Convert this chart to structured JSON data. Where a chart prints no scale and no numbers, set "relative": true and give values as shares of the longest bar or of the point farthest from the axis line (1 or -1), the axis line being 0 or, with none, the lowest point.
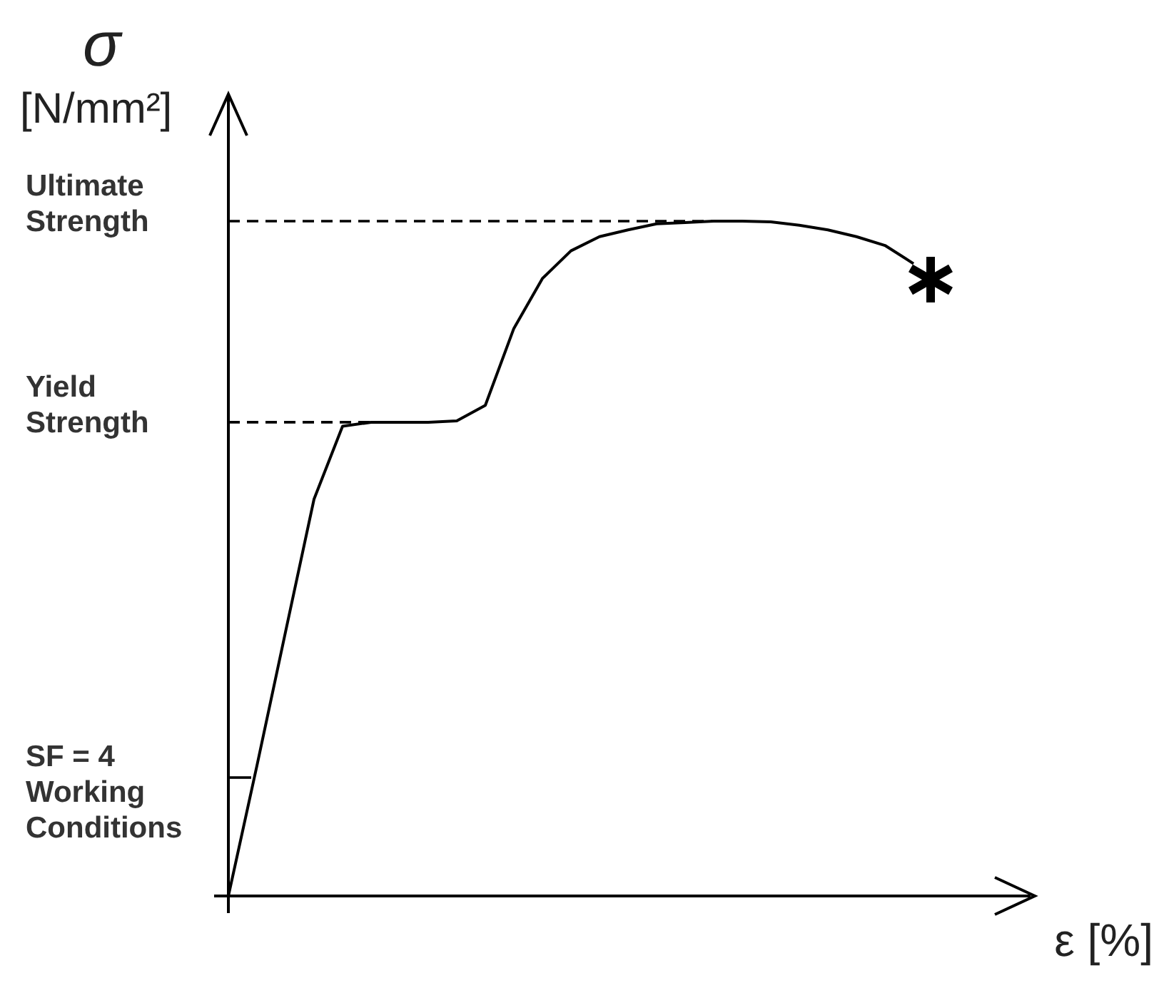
{
  "chart_data": {
    "type": "line",
    "relative": true,
    "ylabel": "σ\n[N/mm²]",
    "xlabel": "ε [%]",
    "line_style": "solid",
    "marker": "none",
    "categories": [
      null,
      null,
      null,
      null,
      null,
      null,
      null,
      null,
      null,
      null,
      null,
      null,
      null,
      null,
      null,
      null,
      null,
      null,
      null,
      null,
      null,
      null,
      null,
      null,
      null
    ],
    "series": [
      {
        "color": "#000000",
        "values": [
          0,
          0.193,
          0.391,
          0.588,
          0.696,
          0.702,
          0.702,
          0.702,
          0.704,
          0.727,
          0.841,
          0.915,
          0.956,
          0.977,
          0.987,
          0.996,
          0.998,
          1,
          1,
          0.999,
          0.994,
          0.987,
          0.977,
          0.964,
          0.937
        ]
      }
    ],
    "ref_lines": [
      {
        "axis": "y",
        "value": 1,
        "label": "Ultimate\nStrength",
        "line_style": "dashed",
        "color": "#000000"
      },
      {
        "axis": "y",
        "value": 0.702,
        "label": "Yield\nStrength",
        "line_style": "dashed",
        "color": "#000000"
      }
    ],
    "annotations": [
      "SF = 4\nWorking\nConditions"
    ]
  }
}
